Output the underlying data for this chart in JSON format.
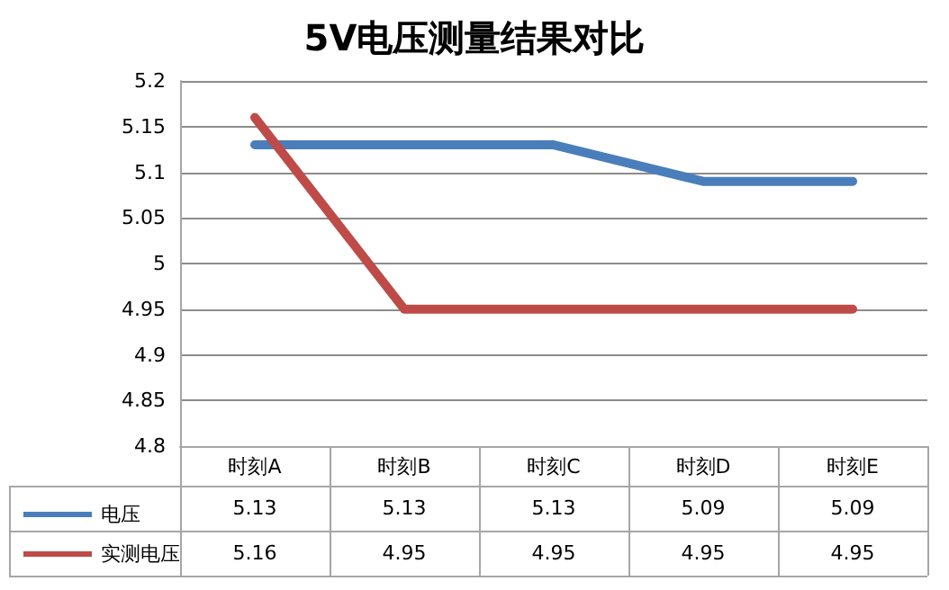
{
  "chart_data": {
    "type": "line",
    "title": "5V电压测量结果对比",
    "categories": [
      "时刻A",
      "时刻B",
      "时刻C",
      "时刻D",
      "时刻E"
    ],
    "series": [
      {
        "name": "电压",
        "color": "#4a7ebb",
        "values": [
          5.13,
          5.13,
          5.13,
          5.09,
          5.09
        ]
      },
      {
        "name": "实测电压",
        "color": "#be4b48",
        "values": [
          5.16,
          4.95,
          4.95,
          4.95,
          4.95
        ]
      }
    ],
    "ylim": [
      4.8,
      5.2
    ],
    "yticks": [
      5.2,
      5.15,
      5.1,
      5.05,
      5,
      4.95,
      4.9,
      4.85,
      4.8
    ],
    "grid": "y",
    "legend": "bottom left",
    "data_labels": true,
    "marker": "none",
    "line_style": "solid"
  }
}
